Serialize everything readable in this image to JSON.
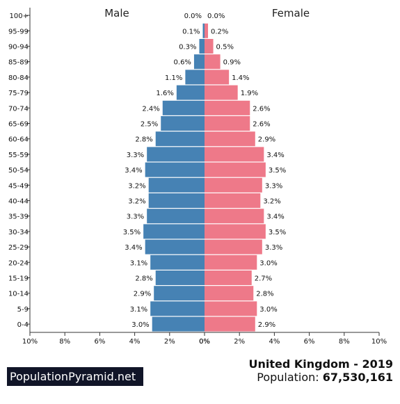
{
  "footer": {
    "brand": "PopulationPyramid.net",
    "country_year": "United Kingdom - 2019",
    "population_label": "Population:",
    "population_value": "67,530,161"
  },
  "chart_data": {
    "type": "bar",
    "orientation": "horizontal",
    "left_label": "Male",
    "right_label": "Female",
    "categories": [
      "100+",
      "95-99",
      "90-94",
      "85-89",
      "80-84",
      "75-79",
      "70-74",
      "65-69",
      "60-64",
      "55-59",
      "50-54",
      "45-49",
      "40-44",
      "35-39",
      "30-34",
      "25-29",
      "20-24",
      "15-19",
      "10-14",
      "5-9",
      "0-4"
    ],
    "series": [
      {
        "name": "Male",
        "color": "#4682b4",
        "values": [
          0.0,
          0.1,
          0.3,
          0.6,
          1.1,
          1.6,
          2.4,
          2.5,
          2.8,
          3.3,
          3.4,
          3.2,
          3.2,
          3.3,
          3.5,
          3.4,
          3.1,
          2.8,
          2.9,
          3.1,
          3.0
        ]
      },
      {
        "name": "Female",
        "color": "#ee7989",
        "values": [
          0.0,
          0.2,
          0.5,
          0.9,
          1.4,
          1.9,
          2.6,
          2.6,
          2.9,
          3.4,
          3.5,
          3.3,
          3.2,
          3.4,
          3.5,
          3.3,
          3.0,
          2.7,
          2.8,
          3.0,
          2.9
        ]
      }
    ],
    "xlim": [
      0,
      10
    ],
    "xticks_left": [
      "10%",
      "8%",
      "6%",
      "4%",
      "2%",
      "0%"
    ],
    "xticks_right": [
      "0%",
      "2%",
      "4%",
      "6%",
      "8%",
      "10%"
    ],
    "value_suffix": "%",
    "grid": false
  }
}
